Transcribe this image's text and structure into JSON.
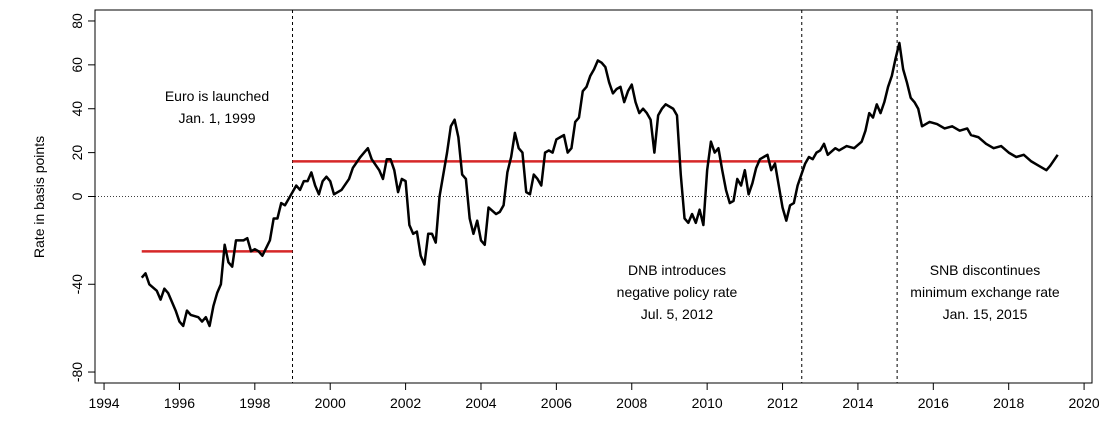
{
  "chart_data": {
    "type": "line",
    "y_label": "Rate in basis points",
    "xlim": [
      1993.76,
      2020.21
    ],
    "ylim": [
      -85,
      85
    ],
    "xticks": [
      1994,
      1996,
      1998,
      2000,
      2002,
      2004,
      2006,
      2008,
      2010,
      2012,
      2014,
      2016,
      2018,
      2020
    ],
    "yticks": [
      -80,
      -40,
      0,
      20,
      40,
      60,
      80
    ],
    "zero_line": true,
    "series": [
      {
        "color": "#000000",
        "x": [
          1995.0,
          1995.1,
          1995.2,
          1995.4,
          1995.5,
          1995.6,
          1995.7,
          1995.9,
          1996.0,
          1996.1,
          1996.2,
          1996.3,
          1996.5,
          1996.6,
          1996.7,
          1996.8,
          1996.9,
          1997.0,
          1997.1,
          1997.2,
          1997.3,
          1997.4,
          1997.5,
          1997.7,
          1997.8,
          1997.9,
          1998.0,
          1998.1,
          1998.2,
          1998.4,
          1998.5,
          1998.6,
          1998.7,
          1998.8,
          1998.9,
          1999.0,
          1999.1,
          1999.2,
          1999.3,
          1999.4,
          1999.5,
          1999.6,
          1999.7,
          1999.8,
          1999.9,
          2000.0,
          2000.1,
          2000.3,
          2000.5,
          2000.6,
          2000.8,
          2000.9,
          2001.0,
          2001.1,
          2001.3,
          2001.4,
          2001.5,
          2001.6,
          2001.7,
          2001.8,
          2001.9,
          2002.0,
          2002.1,
          2002.2,
          2002.3,
          2002.4,
          2002.5,
          2002.6,
          2002.7,
          2002.8,
          2002.9,
          2003.1,
          2003.2,
          2003.3,
          2003.4,
          2003.5,
          2003.6,
          2003.7,
          2003.8,
          2003.9,
          2004.0,
          2004.1,
          2004.2,
          2004.4,
          2004.5,
          2004.6,
          2004.7,
          2004.8,
          2004.9,
          2005.0,
          2005.1,
          2005.2,
          2005.3,
          2005.4,
          2005.5,
          2005.6,
          2005.7,
          2005.8,
          2005.9,
          2006.0,
          2006.1,
          2006.2,
          2006.3,
          2006.4,
          2006.5,
          2006.6,
          2006.7,
          2006.8,
          2006.9,
          2007.0,
          2007.1,
          2007.2,
          2007.3,
          2007.4,
          2007.5,
          2007.6,
          2007.7,
          2007.8,
          2007.9,
          2008.0,
          2008.1,
          2008.2,
          2008.3,
          2008.4,
          2008.5,
          2008.6,
          2008.7,
          2008.8,
          2008.9,
          2009.1,
          2009.2,
          2009.3,
          2009.4,
          2009.5,
          2009.6,
          2009.7,
          2009.8,
          2009.9,
          2010.0,
          2010.1,
          2010.2,
          2010.3,
          2010.4,
          2010.5,
          2010.6,
          2010.7,
          2010.8,
          2010.9,
          2011.0,
          2011.1,
          2011.2,
          2011.3,
          2011.4,
          2011.5,
          2011.6,
          2011.7,
          2011.8,
          2011.9,
          2012.0,
          2012.1,
          2012.2,
          2012.3,
          2012.4,
          2012.5,
          2012.6,
          2012.7,
          2012.8,
          2012.9,
          2013.0,
          2013.1,
          2013.2,
          2013.4,
          2013.5,
          2013.7,
          2013.9,
          2014.1,
          2014.2,
          2014.3,
          2014.4,
          2014.5,
          2014.6,
          2014.7,
          2014.8,
          2014.9,
          2015.0,
          2015.1,
          2015.2,
          2015.3,
          2015.4,
          2015.5,
          2015.6,
          2015.7,
          2015.9,
          2016.1,
          2016.3,
          2016.5,
          2016.7,
          2016.9,
          2017.0,
          2017.2,
          2017.4,
          2017.6,
          2017.8,
          2018.0,
          2018.2,
          2018.4,
          2018.6,
          2018.8,
          2019.0,
          2019.1,
          2019.3
        ],
        "values": [
          -37,
          -35,
          -40,
          -43,
          -47,
          -42,
          -44,
          -52,
          -57,
          -59,
          -52,
          -54,
          -55,
          -57,
          -55,
          -59,
          -50,
          -44,
          -40,
          -22,
          -30,
          -32,
          -20,
          -20,
          -19,
          -25,
          -24,
          -25,
          -27,
          -20,
          -10,
          -10,
          -3,
          -4,
          -1,
          2,
          5,
          3,
          7,
          7,
          11,
          5,
          1,
          7,
          9,
          7,
          1,
          3,
          8,
          13,
          18,
          20,
          22,
          17,
          12,
          8,
          17,
          17,
          12,
          2,
          8,
          7,
          -13,
          -17,
          -16,
          -27,
          -31,
          -17,
          -17,
          -21,
          0,
          20,
          32,
          35,
          27,
          10,
          8,
          -10,
          -17,
          -11,
          -20,
          -22,
          -5,
          -8,
          -7,
          -4,
          11,
          18,
          29,
          22,
          20,
          2,
          1,
          10,
          8,
          5,
          20,
          21,
          20,
          26,
          27,
          28,
          20,
          22,
          34,
          36,
          48,
          50,
          55,
          58,
          62,
          61,
          59,
          52,
          47,
          49,
          50,
          43,
          48,
          51,
          43,
          38,
          40,
          38,
          35,
          20,
          37,
          40,
          42,
          40,
          37,
          10,
          -10,
          -12,
          -8,
          -12,
          -6,
          -13,
          12,
          25,
          20,
          22,
          12,
          3,
          -3,
          -2,
          8,
          5,
          12,
          1,
          6,
          13,
          17,
          18,
          19,
          12,
          15,
          5,
          -5,
          -11,
          -4,
          -3,
          5,
          10,
          15,
          18,
          17,
          20,
          21,
          24,
          19,
          22,
          21,
          23,
          22,
          25,
          30,
          38,
          36,
          42,
          38,
          43,
          50,
          55,
          63,
          70,
          58,
          52,
          45,
          43,
          40,
          32,
          34,
          33,
          31,
          32,
          30,
          31,
          28,
          27,
          24,
          22,
          23,
          20,
          18,
          19,
          16,
          14,
          12,
          14,
          19
        ]
      }
    ],
    "segments": [
      {
        "x": [
          1995.0,
          1999.0
        ],
        "value": -25,
        "color": "#d62728"
      },
      {
        "x": [
          1999.0,
          2012.51
        ],
        "value": 16,
        "color": "#d62728"
      }
    ],
    "events": [
      1999.0,
      2012.51,
      2015.04
    ],
    "annotations": [
      {
        "lines": [
          "Euro is launched",
          "Jan. 1, 1999"
        ]
      },
      {
        "lines": [
          "DNB introduces",
          "negative policy rate",
          "Jul. 5, 2012"
        ]
      },
      {
        "lines": [
          "SNB discontinues",
          "minimum exchange rate",
          "Jan. 15, 2015"
        ]
      }
    ]
  }
}
